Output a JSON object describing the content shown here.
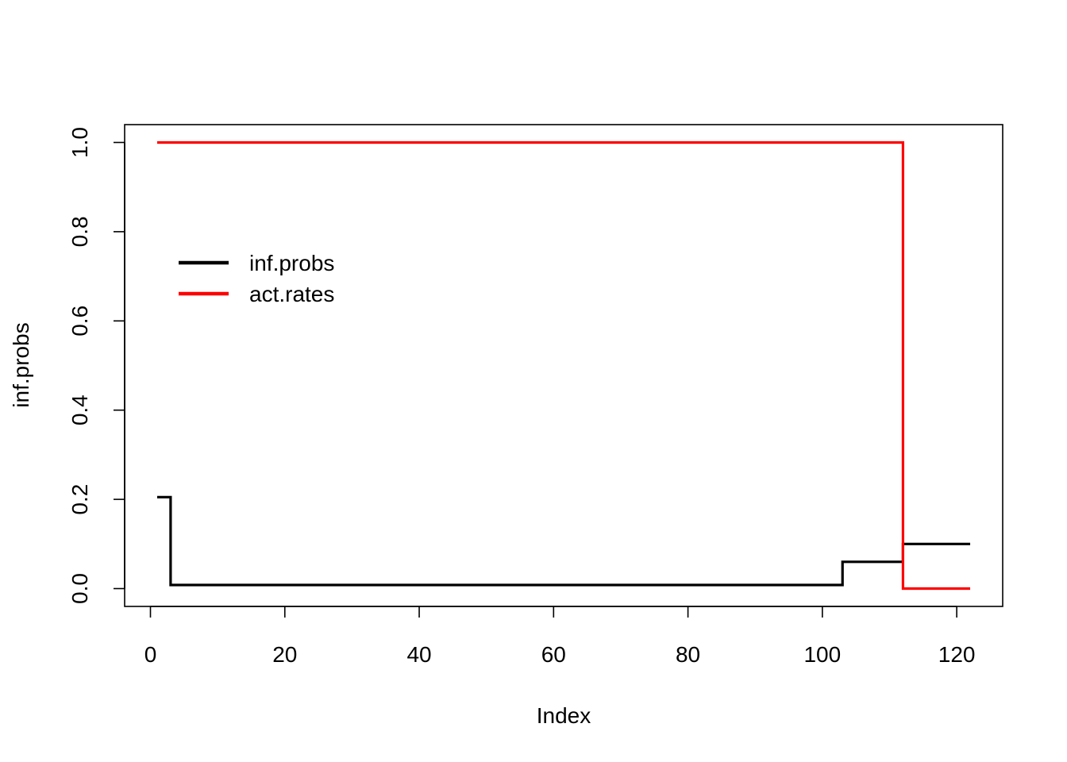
{
  "chart_data": {
    "type": "line",
    "title": "",
    "xlabel": "Index",
    "ylabel": "inf.probs",
    "xlim": [
      -3.84,
      126.84
    ],
    "ylim": [
      -0.04,
      1.04
    ],
    "x_ticks": [
      0,
      20,
      40,
      60,
      80,
      100,
      120
    ],
    "y_ticks": [
      0.0,
      0.2,
      0.4,
      0.6,
      0.8,
      1.0
    ],
    "x_tick_labels": [
      "0",
      "20",
      "40",
      "60",
      "80",
      "100",
      "120"
    ],
    "y_tick_labels": [
      "0.0",
      "0.2",
      "0.4",
      "0.6",
      "0.8",
      "1.0"
    ],
    "grid": false,
    "legend_position": "upper-left",
    "series": [
      {
        "name": "inf.probs",
        "color": "#000000",
        "step": true,
        "points": [
          [
            1,
            0.205
          ],
          [
            3,
            0.008
          ],
          [
            103,
            0.06
          ],
          [
            112,
            0.1
          ],
          [
            122,
            0.1
          ]
        ]
      },
      {
        "name": "act.rates",
        "color": "#ff0000",
        "step": true,
        "points": [
          [
            1,
            1.0
          ],
          [
            112,
            0.0
          ],
          [
            122,
            0.0
          ]
        ]
      }
    ]
  }
}
